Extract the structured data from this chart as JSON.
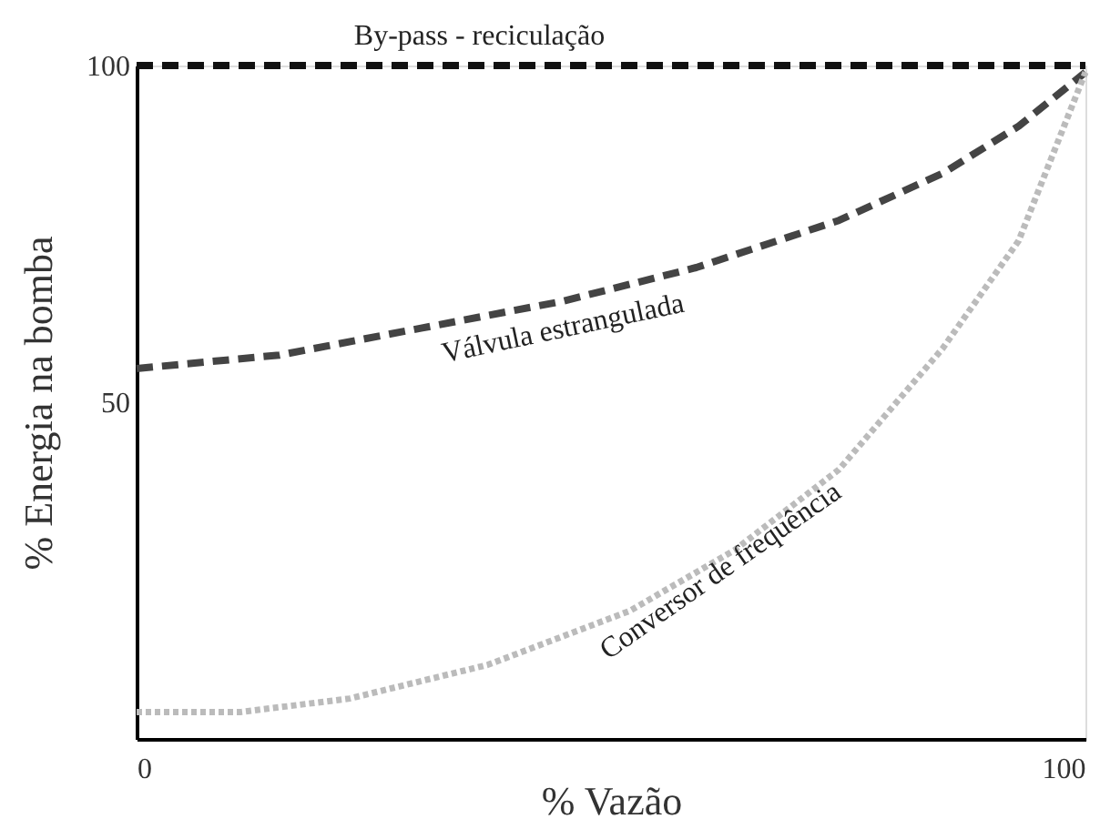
{
  "chart_data": {
    "type": "line",
    "xlabel": "% Vazão",
    "ylabel": "% Energia na bomba",
    "xlim": [
      0,
      102.4
    ],
    "xticks": [
      0,
      100
    ],
    "ylim": [
      0,
      100
    ],
    "yticks": [
      50,
      100
    ],
    "grid": false,
    "legend": false,
    "marker": "none",
    "series": [
      {
        "name": "By-pass - reciculação",
        "color": "#111111",
        "line_style": "dashed",
        "x": [
          0,
          102.4
        ],
        "values": [
          100,
          100
        ]
      },
      {
        "name": "Válvula estrangulada",
        "color": "#444444",
        "line_style": "dashed",
        "x": [
          0,
          15.4,
          30.7,
          46,
          60.4,
          75.8,
          87,
          95.2,
          102.4
        ],
        "values": [
          55,
          57,
          61,
          65,
          70,
          77,
          84,
          91,
          99
        ]
      },
      {
        "name": "Conversor de frequência",
        "color": "#bbbbbb",
        "line_style": "dotted",
        "x": [
          0,
          11.3,
          23,
          37.9,
          53.2,
          64.5,
          75.8,
          87,
          95.2,
          102.4
        ],
        "values": [
          4,
          4,
          6,
          11,
          19,
          28,
          40,
          58,
          74,
          99
        ]
      }
    ]
  }
}
